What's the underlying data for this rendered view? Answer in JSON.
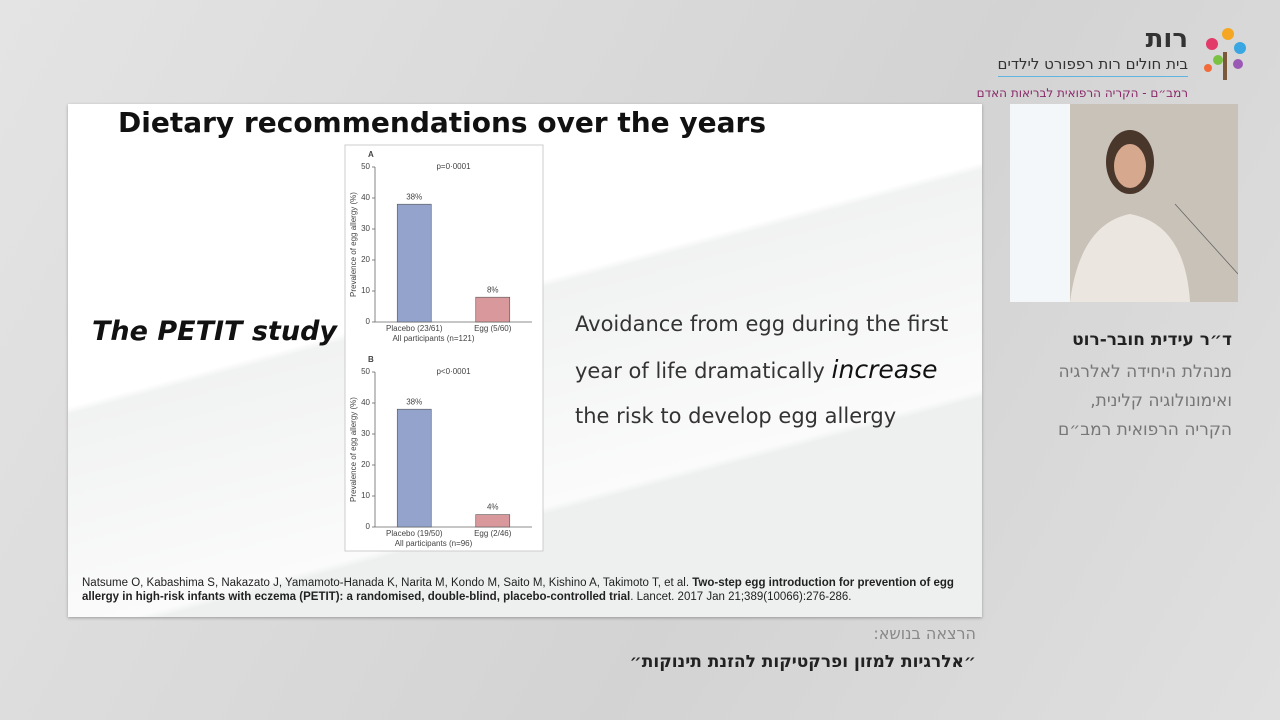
{
  "header": {
    "logo": "רות",
    "hospital": "בית חולים רות רפפורט לילדים",
    "campus": "רמב״ם - הקריה הרפואית לבריאות האדם"
  },
  "slide": {
    "title": "Dietary recommendations over the years",
    "study": "The PETIT study",
    "body": {
      "before": "Avoidance from egg during the first year of life dramatically",
      "emphasis": "increase",
      "after": "the risk to develop egg allergy"
    },
    "citation": {
      "authors": "Natsume O, Kabashima S, Nakazato J, Yamamoto-Hanada K, Narita M, Kondo M, Saito M, Kishino A, Takimoto T, et al.",
      "article": "Two-step egg introduction for prevention of egg allergy in high-risk infants with eczema (PETIT): a randomised, double-blind, placebo-controlled trial",
      "journal": ". Lancet. 2017 Jan 21;389(10066):276-286."
    }
  },
  "chart_data": [
    {
      "type": "bar",
      "title": "A",
      "subtitle": "p=0·0001",
      "ylabel": "Prevalence of egg allergy (%)",
      "xlabel": "All participants (n=121)",
      "categories": [
        "Placebo (23/61)",
        "Egg (5/60)"
      ],
      "values": [
        38,
        8
      ],
      "value_labels": [
        "38%",
        "8%"
      ],
      "colors": [
        "#94a3cc",
        "#d9999c"
      ],
      "ylim": [
        0,
        50
      ],
      "yticks": [
        0,
        10,
        20,
        30,
        40,
        50
      ]
    },
    {
      "type": "bar",
      "title": "B",
      "subtitle": "p<0·0001",
      "ylabel": "Prevalence of egg allergy (%)",
      "xlabel": "All participants (n=96)",
      "categories": [
        "Placebo (19/50)",
        "Egg (2/46)"
      ],
      "values": [
        38,
        4
      ],
      "value_labels": [
        "38%",
        "4%"
      ],
      "colors": [
        "#94a3cc",
        "#d9999c"
      ],
      "ylim": [
        0,
        50
      ],
      "yticks": [
        0,
        10,
        20,
        30,
        40,
        50
      ]
    }
  ],
  "speaker": {
    "name": "ד״ר עידית חובר-רוט",
    "role": [
      "מנהלת היחידה לאלרגיה",
      "ואימונולוגיה קלינית,",
      "הקריה הרפואית רמב״ם"
    ]
  },
  "lecture": {
    "label": "הרצאה בנושא:",
    "topic": "״אלרגיות למזון ופרקטיקות להזנת תינוקות״"
  }
}
